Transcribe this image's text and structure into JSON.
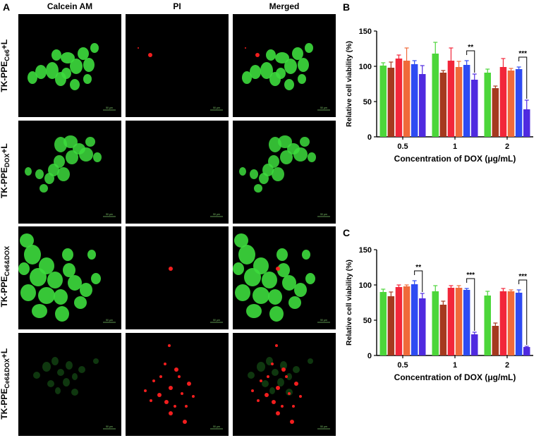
{
  "panel_labels": {
    "a": "A",
    "b": "B",
    "c": "C"
  },
  "microscopy": {
    "columns": [
      "Calcein AM",
      "PI",
      "Merged"
    ],
    "rows": [
      {
        "prefix": "TK-PPE",
        "sub": "Ce6",
        "suffix": "+L"
      },
      {
        "prefix": "TK-PPE",
        "sub": "DOX",
        "suffix": "+L"
      },
      {
        "prefix": "TK-PPE",
        "sub": "Ce6&DOX",
        "suffix": ""
      },
      {
        "prefix": "TK-PPE",
        "sub": "Ce6&DOX",
        "suffix": "+L"
      }
    ],
    "scale_bar_text": "50 μm",
    "colors": {
      "green": "#3ddc3d",
      "red": "#ff2020",
      "background": "#000000"
    }
  },
  "chart_data": [
    {
      "type": "bar",
      "panel": "B",
      "categories": [
        "0.5",
        "1",
        "2"
      ],
      "xlabel": "Concentration of DOX (μg/mL)",
      "ylabel": "Relative cell viability (%)",
      "ylim": [
        0,
        150
      ],
      "yticks": [
        0,
        50,
        100,
        150
      ],
      "series_colors": [
        "#4cd63a",
        "#a5391f",
        "#f2263a",
        "#f06a3a",
        "#2e4bf2",
        "#4f2ae0"
      ],
      "series": [
        {
          "values": [
            101,
            118,
            91
          ],
          "errors": [
            4,
            16,
            5
          ]
        },
        {
          "values": [
            98,
            91,
            69
          ],
          "errors": [
            8,
            3,
            3
          ]
        },
        {
          "values": [
            111,
            108,
            99
          ],
          "errors": [
            5,
            18,
            12
          ]
        },
        {
          "values": [
            108,
            99,
            94
          ],
          "errors": [
            18,
            8,
            3
          ]
        },
        {
          "values": [
            103,
            102,
            96
          ],
          "errors": [
            5,
            6,
            3
          ]
        },
        {
          "values": [
            89,
            81,
            39
          ],
          "errors": [
            12,
            8,
            13
          ]
        }
      ],
      "significance": [
        {
          "category": 1,
          "from_series": 4,
          "to_series": 5,
          "label": "**"
        },
        {
          "category": 2,
          "from_series": 4,
          "to_series": 5,
          "label": "***"
        }
      ]
    },
    {
      "type": "bar",
      "panel": "C",
      "categories": [
        "0.5",
        "1",
        "2"
      ],
      "xlabel": "Concentration of DOX (μg/mL)",
      "ylabel": "Relative cell viability (%)",
      "ylim": [
        0,
        150
      ],
      "yticks": [
        0,
        50,
        100,
        150
      ],
      "series_colors": [
        "#4cd63a",
        "#a5391f",
        "#f2263a",
        "#f06a3a",
        "#2e4bf2",
        "#4f2ae0"
      ],
      "series": [
        {
          "values": [
            90,
            91,
            85
          ],
          "errors": [
            4,
            8,
            6
          ]
        },
        {
          "values": [
            84,
            72,
            42
          ],
          "errors": [
            6,
            5,
            4
          ]
        },
        {
          "values": [
            97,
            96,
            91
          ],
          "errors": [
            3,
            3,
            4
          ]
        },
        {
          "values": [
            98,
            96,
            91
          ],
          "errors": [
            2,
            3,
            2
          ]
        },
        {
          "values": [
            101,
            93,
            89
          ],
          "errors": [
            5,
            2,
            4
          ]
        },
        {
          "values": [
            81,
            30,
            12
          ],
          "errors": [
            7,
            3,
            1
          ]
        }
      ],
      "significance": [
        {
          "category": 0,
          "from_series": 4,
          "to_series": 5,
          "label": "**"
        },
        {
          "category": 1,
          "from_series": 4,
          "to_series": 5,
          "label": "***"
        },
        {
          "category": 2,
          "from_series": 4,
          "to_series": 5,
          "label": "***"
        }
      ]
    }
  ]
}
